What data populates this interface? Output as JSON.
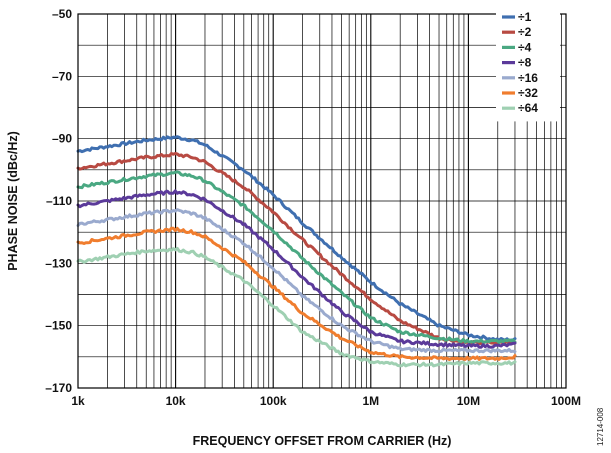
{
  "figure_id": "12714-008",
  "chart_data": {
    "type": "line",
    "title": "",
    "xlabel": "FREQUENCY OFFSET FROM CARRIER (Hz)",
    "ylabel": "PHASE NOISE (dBc/Hz)",
    "x_scale": "log",
    "xlim": [
      1000,
      100000000
    ],
    "ylim": [
      -170,
      -50
    ],
    "x_ticks": [
      {
        "value": 1000,
        "label": "1k"
      },
      {
        "value": 10000,
        "label": "10k"
      },
      {
        "value": 100000,
        "label": "100k"
      },
      {
        "value": 1000000,
        "label": "1M"
      },
      {
        "value": 10000000,
        "label": "10M"
      },
      {
        "value": 100000000,
        "label": "100M"
      }
    ],
    "y_ticks": [
      {
        "value": -50,
        "label": "–50"
      },
      {
        "value": -70,
        "label": "–70"
      },
      {
        "value": -90,
        "label": "–90"
      },
      {
        "value": -110,
        "label": "–110"
      },
      {
        "value": -130,
        "label": "–130"
      },
      {
        "value": -150,
        "label": "–150"
      },
      {
        "value": -170,
        "label": "–170"
      }
    ],
    "grid": true,
    "legend_position": "top-right",
    "x": [
      1000,
      2000,
      5000,
      10000,
      15000,
      20000,
      50000,
      100000,
      200000,
      500000,
      1000000,
      2000000,
      5000000,
      10000000,
      20000000,
      30000000
    ],
    "series": [
      {
        "name": "÷1",
        "color": "#3f6fb0",
        "values": [
          -94,
          -92.5,
          -90.5,
          -89.5,
          -90.5,
          -92,
          -100,
          -108,
          -117,
          -128,
          -136,
          -143,
          -150,
          -153,
          -154.5,
          -154.5
        ]
      },
      {
        "name": "÷2",
        "color": "#b84a42",
        "values": [
          -99.5,
          -98,
          -96,
          -95,
          -96,
          -97.5,
          -105.5,
          -113.5,
          -122.5,
          -133.5,
          -141.5,
          -148.5,
          -154,
          -155.5,
          -155.5,
          -155
        ]
      },
      {
        "name": "÷4",
        "color": "#4aa882",
        "values": [
          -105.5,
          -104,
          -102,
          -101,
          -102,
          -103.5,
          -111.5,
          -119.5,
          -128.5,
          -139.5,
          -147.5,
          -152,
          -154,
          -155,
          -155,
          -155
        ]
      },
      {
        "name": "÷8",
        "color": "#5b3a9a",
        "values": [
          -111.5,
          -110,
          -108,
          -107,
          -108,
          -109.5,
          -117.5,
          -125.5,
          -134.5,
          -145.5,
          -152,
          -155,
          -156,
          -156.5,
          -156.5,
          -156
        ]
      },
      {
        "name": "÷16",
        "color": "#9aaace",
        "values": [
          -117.5,
          -116,
          -114,
          -113,
          -114,
          -115.5,
          -123.5,
          -131.5,
          -140.5,
          -150,
          -155,
          -157.5,
          -158,
          -158,
          -158,
          -158
        ]
      },
      {
        "name": "÷32",
        "color": "#f07d2e",
        "values": [
          -123.5,
          -122,
          -120,
          -119,
          -120,
          -121.5,
          -129.5,
          -137.5,
          -146,
          -154,
          -158.5,
          -160,
          -160.5,
          -160.5,
          -160.5,
          -160
        ]
      },
      {
        "name": "÷64",
        "color": "#9fd0b2",
        "values": [
          -129.5,
          -128,
          -126,
          -125.5,
          -126.5,
          -128,
          -135.5,
          -143.5,
          -152,
          -159,
          -161.5,
          -162.5,
          -162.5,
          -162,
          -162,
          -162
        ]
      }
    ]
  }
}
